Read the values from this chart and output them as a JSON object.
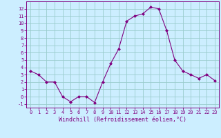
{
  "x": [
    0,
    1,
    2,
    3,
    4,
    5,
    6,
    7,
    8,
    9,
    10,
    11,
    12,
    13,
    14,
    15,
    16,
    17,
    18,
    19,
    20,
    21,
    22,
    23
  ],
  "y": [
    3.5,
    3.0,
    2.0,
    2.0,
    0.0,
    -0.7,
    0.0,
    0.0,
    -0.8,
    2.0,
    4.5,
    6.5,
    10.3,
    11.0,
    11.3,
    12.2,
    12.0,
    9.0,
    5.0,
    3.5,
    3.0,
    2.5,
    3.0,
    2.2
  ],
  "line_color": "#800080",
  "marker_color": "#800080",
  "bg_color": "#cceeff",
  "grid_color": "#99cccc",
  "xlabel": "Windchill (Refroidissement éolien,°C)",
  "xlim": [
    -0.5,
    23.5
  ],
  "ylim": [
    -1.5,
    13.0
  ],
  "yticks": [
    -1,
    0,
    1,
    2,
    3,
    4,
    5,
    6,
    7,
    8,
    9,
    10,
    11,
    12
  ],
  "xticks": [
    0,
    1,
    2,
    3,
    4,
    5,
    6,
    7,
    8,
    9,
    10,
    11,
    12,
    13,
    14,
    15,
    16,
    17,
    18,
    19,
    20,
    21,
    22,
    23
  ],
  "tick_fontsize": 5.0,
  "label_fontsize": 6.0,
  "spine_color": "#800080"
}
